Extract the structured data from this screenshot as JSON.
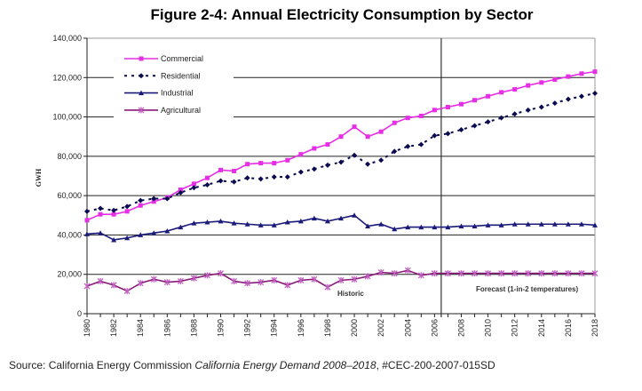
{
  "chart_data": {
    "type": "line",
    "title": "Figure 2-4: Annual Electricity Consumption by Sector",
    "ylabel": "GWH",
    "xlabel": "",
    "ylim": [
      0,
      140000
    ],
    "xlim": [
      1980,
      2018
    ],
    "yticks": [
      "0",
      "20,000",
      "40,000",
      "60,000",
      "80,000",
      "100,000",
      "120,000",
      "140,000"
    ],
    "grid": "horizontal",
    "legend": "top-left",
    "x": [
      1980,
      1981,
      1982,
      1983,
      1984,
      1985,
      1986,
      1987,
      1988,
      1989,
      1990,
      1991,
      1992,
      1993,
      1994,
      1995,
      1996,
      1997,
      1998,
      1999,
      2000,
      2001,
      2002,
      2003,
      2004,
      2005,
      2006,
      2007,
      2008,
      2009,
      2010,
      2011,
      2012,
      2013,
      2014,
      2015,
      2016,
      2017,
      2018
    ],
    "series": [
      {
        "name": "Commercial",
        "color": "#e62ee6",
        "style": "solid",
        "marker": "square",
        "values": [
          47500,
          50500,
          50500,
          52000,
          55000,
          57000,
          59000,
          63000,
          66000,
          69000,
          73000,
          72500,
          76000,
          76500,
          76500,
          78000,
          81000,
          84000,
          86000,
          90000,
          95000,
          90000,
          92500,
          97000,
          99500,
          100500,
          103500,
          105000,
          106500,
          108500,
          110500,
          112500,
          114000,
          116000,
          117500,
          119000,
          120500,
          122000,
          123000
        ]
      },
      {
        "name": "Residential",
        "color": "#0a0a50",
        "style": "dotted",
        "marker": "diamond",
        "values": [
          52000,
          53500,
          52500,
          54500,
          57500,
          58500,
          58500,
          61500,
          64000,
          65500,
          67500,
          67000,
          69000,
          68500,
          69500,
          69500,
          72000,
          73500,
          75500,
          77000,
          80500,
          76000,
          78000,
          82500,
          85000,
          86000,
          90500,
          91500,
          93500,
          95500,
          97500,
          99500,
          101500,
          103500,
          105000,
          107000,
          109000,
          110500,
          112000
        ]
      },
      {
        "name": "Industrial",
        "color": "#1a1a7a",
        "style": "solid",
        "marker": "triangle",
        "values": [
          40500,
          41000,
          37500,
          38500,
          40000,
          41000,
          42000,
          44000,
          46000,
          46500,
          47000,
          46000,
          45500,
          45000,
          45000,
          46500,
          47000,
          48500,
          47000,
          48500,
          50000,
          44500,
          45500,
          43000,
          44000,
          44000,
          44000,
          44000,
          44500,
          44500,
          45000,
          45000,
          45500,
          45500,
          45500,
          45500,
          45500,
          45500,
          45000
        ]
      },
      {
        "name": "Agricultural",
        "color": "#8a1a7a",
        "style": "solid",
        "marker": "star",
        "values": [
          14000,
          16500,
          14500,
          11500,
          15500,
          17500,
          16000,
          16500,
          18000,
          19500,
          20500,
          16500,
          15500,
          16000,
          17000,
          14500,
          17000,
          17500,
          13500,
          17000,
          17500,
          19000,
          21000,
          20500,
          22000,
          19500,
          20500,
          20500,
          20500,
          20500,
          20500,
          20500,
          20500,
          20500,
          20500,
          20500,
          20500,
          20500,
          20500
        ]
      }
    ],
    "annotations": [
      {
        "text": "Historic"
      },
      {
        "text": "Forecast (1-in-2 temperatures)"
      }
    ],
    "divider_year": 2006.5
  },
  "source": {
    "prefix": "Source: California Energy Commission ",
    "italic": "California Energy Demand 2008–2018",
    "suffix": ", #CEC-200-2007-015SD"
  }
}
